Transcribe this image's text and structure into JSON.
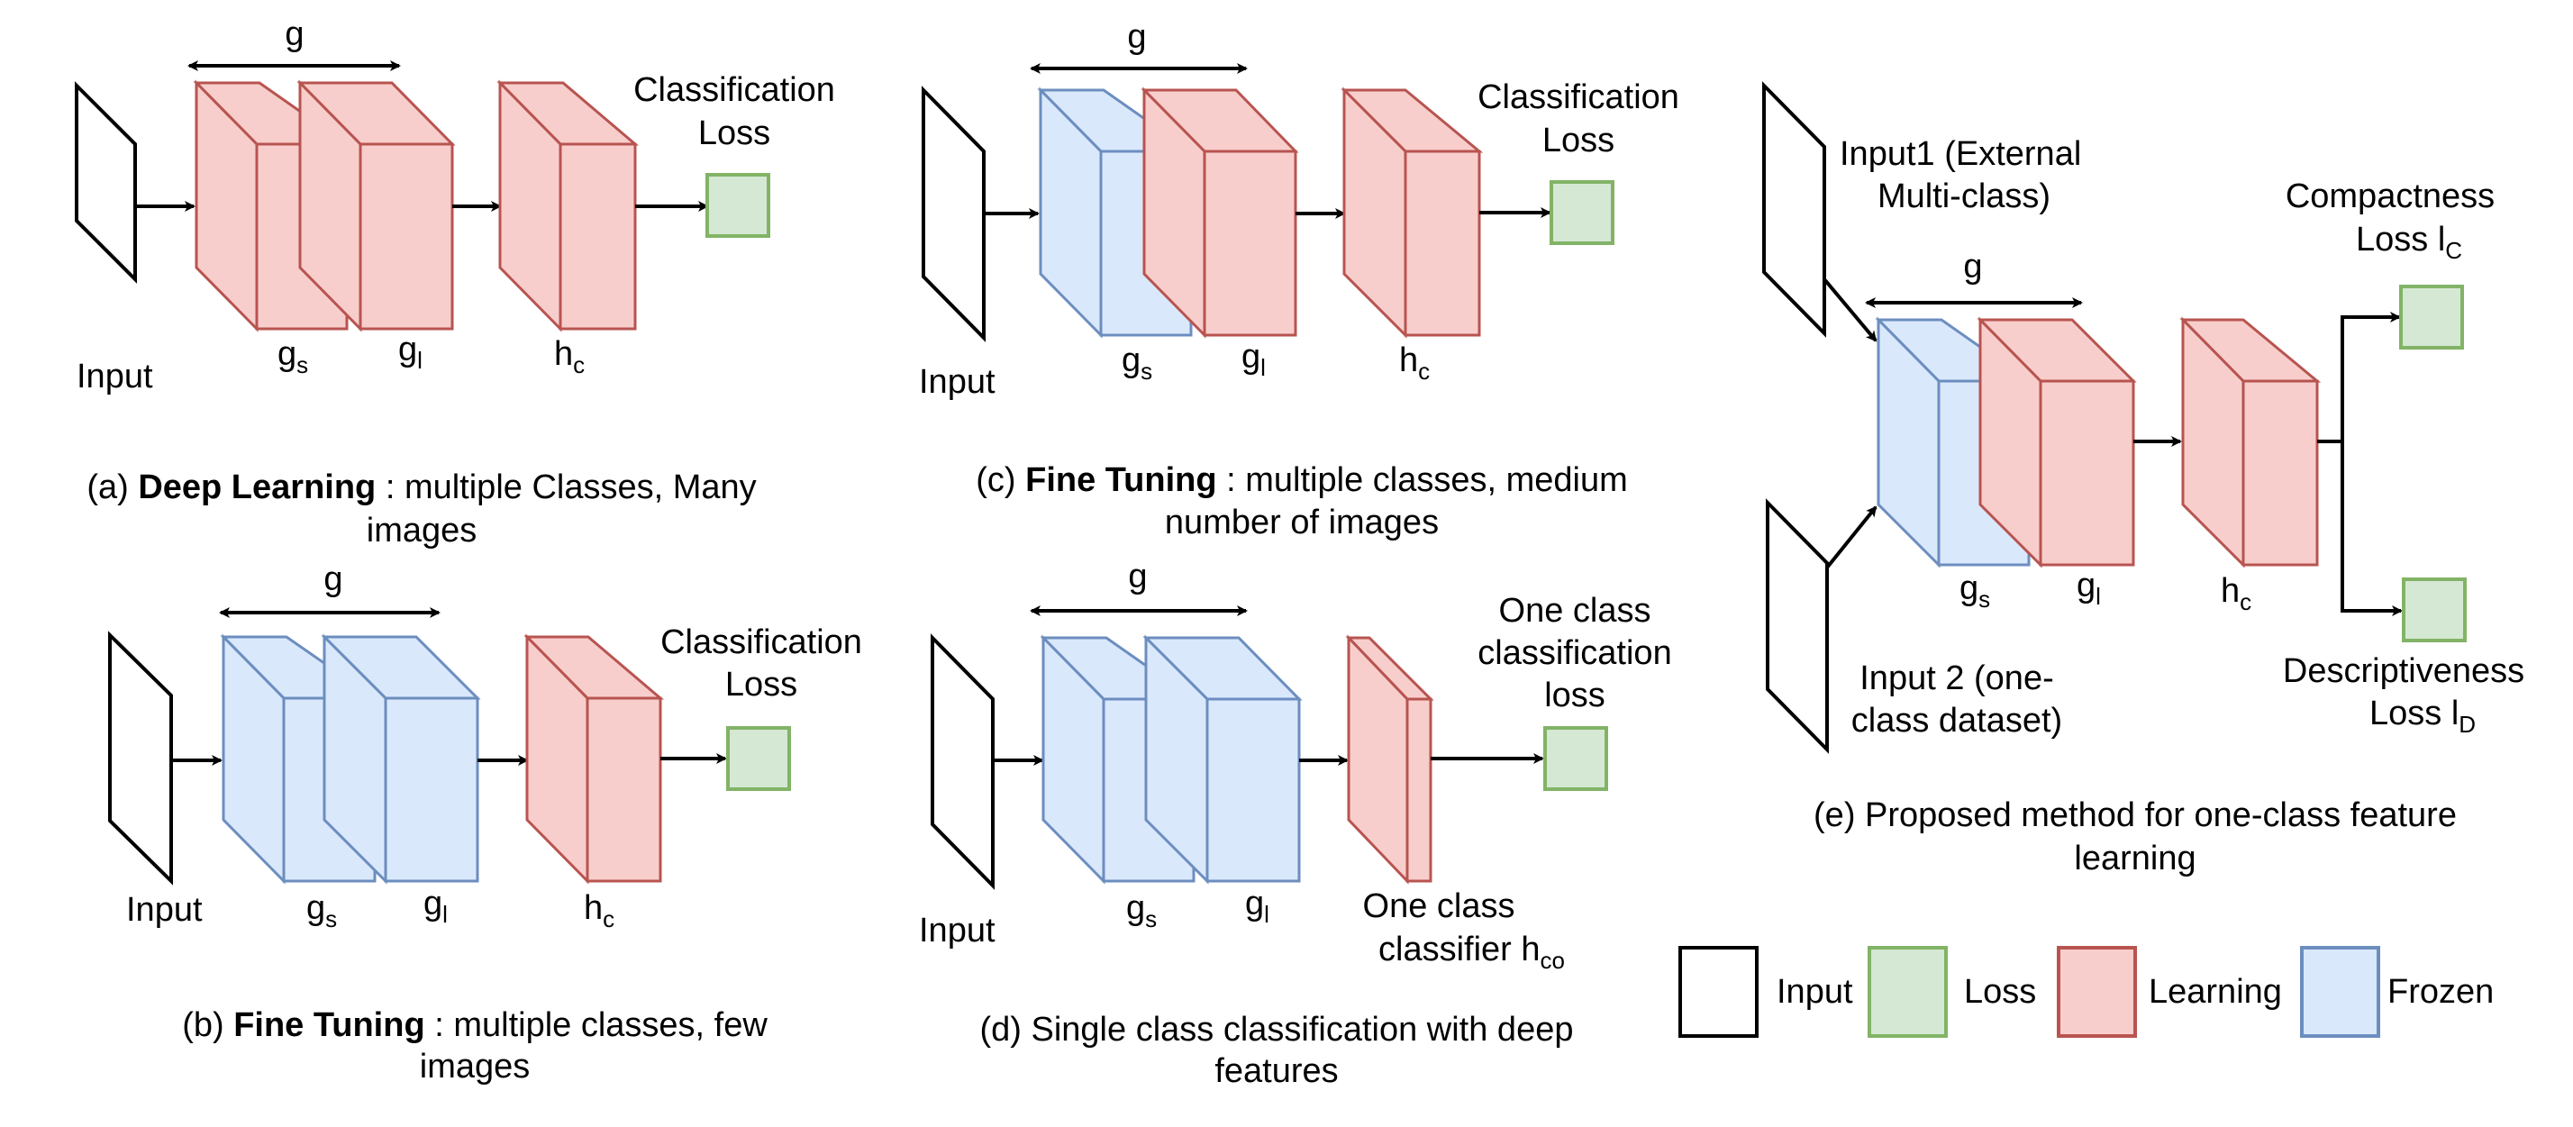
{
  "colors": {
    "learning_fill": "#f8cecc",
    "learning_stroke": "#b85450",
    "frozen_fill": "#dae8fc",
    "frozen_stroke": "#6c8ebf",
    "loss_fill": "#d5e8d4",
    "loss_stroke": "#82b366",
    "input_fill": "#ffffff",
    "input_stroke": "#000000"
  },
  "icons": {
    "arrow": "arrow-icon",
    "double_arrow": "double-arrow-icon"
  },
  "labels": {
    "g": "g",
    "input": "Input",
    "gs_base": "g",
    "gs_sub": "s",
    "gl_base": "g",
    "gl_sub": "l",
    "hc_base": "h",
    "hc_sub": "c",
    "classification_loss_1": "Classification",
    "classification_loss_2": "Loss"
  },
  "panel_a": {
    "caption_prefix": "(a) ",
    "caption_bold": "Deep Learning",
    "caption_rest": " : multiple Classes, Many",
    "caption_line2": "images"
  },
  "panel_b": {
    "caption_prefix": "(b) ",
    "caption_bold": "Fine Tuning",
    "caption_rest": " : multiple classes, few",
    "caption_line2": "images"
  },
  "panel_c": {
    "caption_prefix": "(c) ",
    "caption_bold": "Fine Tuning",
    "caption_rest": " : multiple classes, medium",
    "caption_line2": "number of images"
  },
  "panel_d": {
    "loss_1": "One class",
    "loss_2": "classification",
    "loss_3": "loss",
    "classifier_1": "One class",
    "classifier_2": "classifier h",
    "classifier_sub": "co",
    "caption_line1": "(d) Single class classification with deep",
    "caption_line2": "features"
  },
  "panel_e": {
    "input1_1": "Input1 (External",
    "input1_2": "Multi-class)",
    "input2_1": "Input 2 (one-",
    "input2_2": "class dataset)",
    "compact_1": "Compactness",
    "compact_2": "Loss l",
    "compact_sub": "C",
    "desc_1": "Descriptiveness",
    "desc_2": "Loss l",
    "desc_sub": "D",
    "caption_line1": "(e) Proposed method for one-class feature",
    "caption_line2": "learning"
  },
  "legend": {
    "input": "Input",
    "loss": "Loss",
    "learning": "Learning",
    "frozen": "Frozen"
  }
}
